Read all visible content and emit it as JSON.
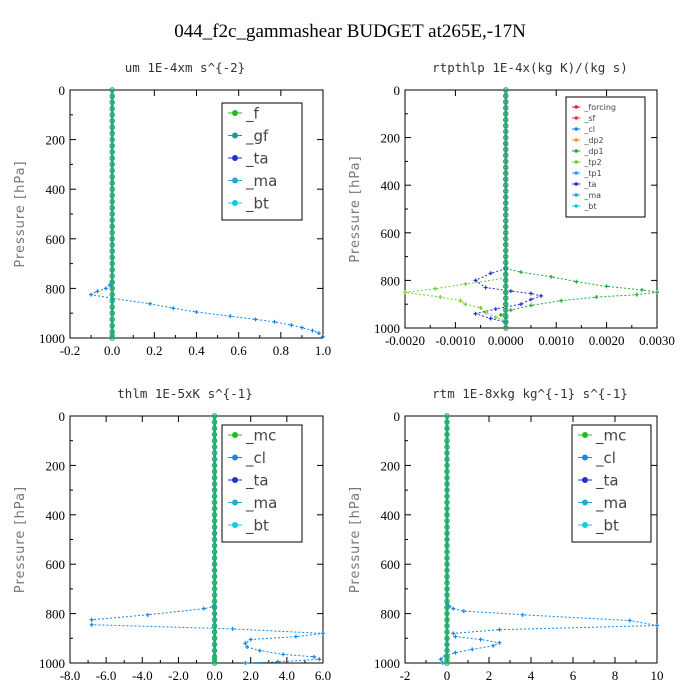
{
  "title": "044_f2c_gammashear  BUDGET at265E,-17N",
  "chart_data": [
    {
      "type": "line",
      "title": "um  1E-4xm s^{-2}",
      "ylabel": "Pressure [hPa]",
      "xlim": [
        -0.2,
        1.0
      ],
      "ylim": [
        1000,
        0
      ],
      "xticks": [
        "-0.2",
        "0.0",
        "0.2",
        "0.4",
        "0.6",
        "0.8",
        "1.0"
      ],
      "yticks": [
        "0",
        "200",
        "400",
        "600",
        "800",
        "1000"
      ],
      "legend": [
        "_f",
        "_gf",
        "_ta",
        "_ma",
        "_bt"
      ],
      "series": [
        {
          "name": "_f",
          "color": "#22bb22",
          "x": [
            0,
            0,
            0,
            0,
            0,
            0,
            0,
            0,
            0,
            0,
            0,
            0,
            0,
            0,
            0,
            0,
            0,
            0,
            0,
            0,
            0,
            0,
            0,
            0,
            0,
            0,
            0,
            0,
            0,
            0,
            0,
            0,
            0,
            0,
            0,
            0,
            0,
            0,
            0,
            0,
            0,
            0
          ],
          "y": [
            0,
            25,
            50,
            75,
            100,
            125,
            150,
            175,
            200,
            225,
            250,
            275,
            300,
            325,
            350,
            375,
            400,
            425,
            450,
            475,
            500,
            525,
            550,
            575,
            600,
            625,
            650,
            675,
            700,
            725,
            750,
            775,
            800,
            825,
            850,
            875,
            900,
            925,
            950,
            975,
            990,
            1000
          ]
        },
        {
          "name": "_ta",
          "color": "#1188ee",
          "x": [
            0,
            -0.01,
            -0.03,
            -0.07,
            -0.1,
            0.0,
            0.18,
            0.29,
            0.4,
            0.56,
            0.68,
            0.77,
            0.85,
            0.9,
            0.95,
            0.98,
            1.0
          ],
          "y": [
            775,
            785,
            800,
            812,
            825,
            840,
            862,
            880,
            895,
            912,
            925,
            935,
            948,
            958,
            970,
            980,
            995
          ]
        },
        {
          "name": "_bt",
          "color": "#22aa77",
          "x": [
            0,
            0,
            0,
            0,
            0,
            0,
            0,
            0,
            0,
            0,
            0,
            0,
            0,
            0,
            0,
            0,
            0,
            0,
            0,
            0,
            0,
            0,
            0,
            0,
            0,
            0,
            0,
            0,
            0,
            0,
            0,
            0,
            0,
            0,
            0,
            0,
            0,
            0,
            0,
            0,
            0
          ],
          "y": [
            0,
            25,
            50,
            75,
            100,
            125,
            150,
            175,
            200,
            225,
            250,
            275,
            300,
            325,
            350,
            375,
            400,
            425,
            450,
            475,
            500,
            525,
            550,
            575,
            600,
            625,
            650,
            675,
            700,
            725,
            750,
            775,
            800,
            825,
            850,
            875,
            900,
            925,
            950,
            975,
            1000
          ]
        }
      ]
    },
    {
      "type": "line",
      "title": "rtpthlp  1E-4x(kg K)/(kg s)",
      "ylabel": "Pressure [hPa]",
      "xlim": [
        -0.002,
        0.003
      ],
      "ylim": [
        1000,
        0
      ],
      "xticks": [
        "-0.0020",
        "-0.0010",
        "0.0000",
        "0.0010",
        "0.0020",
        "0.0030"
      ],
      "yticks": [
        "0",
        "200",
        "400",
        "600",
        "800",
        "1000"
      ],
      "legend": [
        "_forcing",
        "_sf",
        "_cl",
        "_dp2",
        "_dp1",
        "_tp2",
        "_tp1",
        "_ta",
        "_ma",
        "_bt"
      ],
      "series": [
        {
          "name": "_forcing",
          "color": "#dd2222",
          "x": [
            0,
            0,
            0,
            0,
            0,
            0,
            0,
            0,
            0,
            0,
            0,
            0,
            0,
            0,
            0,
            0,
            0,
            0,
            0,
            0,
            0,
            0,
            0,
            0,
            0,
            0,
            0,
            0,
            0,
            0,
            0,
            0,
            0,
            0,
            0,
            0,
            0,
            0,
            0,
            0,
            0
          ],
          "y": [
            0,
            25,
            50,
            75,
            100,
            125,
            150,
            175,
            200,
            225,
            250,
            275,
            300,
            325,
            350,
            375,
            400,
            425,
            450,
            475,
            500,
            525,
            550,
            575,
            600,
            625,
            650,
            675,
            700,
            725,
            750,
            775,
            800,
            825,
            850,
            875,
            900,
            925,
            950,
            975,
            1000
          ]
        },
        {
          "name": "_dp1",
          "color": "#22aa33",
          "x": [
            0,
            0.0003,
            0.0009,
            0.0014,
            0.002,
            0.0027,
            0.003,
            0.0026,
            0.0018,
            0.0011,
            0.0005,
            0.0001,
            -0.0001,
            0
          ],
          "y": [
            750,
            765,
            785,
            805,
            825,
            840,
            850,
            860,
            870,
            885,
            905,
            925,
            945,
            960
          ]
        },
        {
          "name": "_tp2",
          "color": "#77cc33",
          "x": [
            0,
            -0.0008,
            -0.0014,
            -0.002,
            -0.0013,
            -0.0009,
            -0.0008,
            -0.0005,
            -0.0004,
            -0.0002,
            0
          ],
          "y": [
            790,
            815,
            835,
            850,
            870,
            885,
            900,
            915,
            935,
            955,
            970
          ]
        },
        {
          "name": "_ta",
          "color": "#2233cc",
          "x": [
            0,
            -0.0003,
            -0.0006,
            -0.0004,
            0.0001,
            0.0005,
            0.0007,
            0.0005,
            0.0003,
            -0.0002,
            -0.0006,
            -0.0003,
            0
          ],
          "y": [
            750,
            770,
            800,
            830,
            845,
            855,
            865,
            880,
            900,
            920,
            940,
            960,
            975
          ]
        },
        {
          "name": "_bt",
          "color": "#22aa77",
          "x": [
            0,
            0,
            0,
            0,
            0,
            0,
            0,
            0,
            0,
            0,
            0,
            0,
            0,
            0,
            0,
            0,
            0,
            0,
            0,
            0,
            0,
            0,
            0,
            0,
            0,
            0,
            0,
            0,
            0,
            0,
            0,
            0,
            0,
            0,
            0,
            0,
            0,
            0,
            0,
            0,
            0
          ],
          "y": [
            0,
            25,
            50,
            75,
            100,
            125,
            150,
            175,
            200,
            225,
            250,
            275,
            300,
            325,
            350,
            375,
            400,
            425,
            450,
            475,
            500,
            525,
            550,
            575,
            600,
            625,
            650,
            675,
            700,
            725,
            750,
            775,
            800,
            825,
            850,
            875,
            900,
            925,
            950,
            975,
            1000
          ]
        }
      ]
    },
    {
      "type": "line",
      "title": "thlm  1E-5xK s^{-1}",
      "ylabel": "Pressure [hPa]",
      "xlim": [
        -8.0,
        6.0
      ],
      "ylim": [
        1000,
        0
      ],
      "xticks": [
        "-8.0",
        "-6.0",
        "-4.0",
        "-2.0",
        "0.0",
        "2.0",
        "4.0",
        "6.0"
      ],
      "yticks": [
        "0",
        "200",
        "400",
        "600",
        "800",
        "1000"
      ],
      "legend": [
        "_mc",
        "_cl",
        "_ta",
        "_ma",
        "_bt"
      ],
      "series": [
        {
          "name": "_mc",
          "color": "#22bb22",
          "x": [
            0,
            0,
            0,
            0,
            0,
            0,
            0,
            0,
            0,
            0,
            0,
            0,
            0,
            0,
            0,
            0,
            0,
            0,
            0,
            0,
            0,
            0,
            0,
            0,
            0,
            0,
            0,
            0,
            0,
            0,
            0,
            0,
            0,
            0,
            0,
            0,
            0,
            0,
            0,
            0,
            0,
            0
          ],
          "y": [
            0,
            25,
            50,
            75,
            100,
            125,
            150,
            175,
            200,
            225,
            250,
            275,
            300,
            325,
            350,
            375,
            400,
            425,
            450,
            475,
            500,
            525,
            550,
            575,
            600,
            625,
            650,
            675,
            700,
            725,
            750,
            775,
            800,
            825,
            850,
            875,
            900,
            925,
            950,
            975,
            990,
            1000
          ]
        },
        {
          "name": "_ta",
          "color": "#1188ee",
          "x": [
            0,
            -0.1,
            -0.6,
            -3.7,
            -6.8,
            -6.8,
            1.0,
            6.0,
            4.5,
            2.0,
            1.7,
            1.8,
            2.5,
            3.8,
            5.5,
            5.8,
            3.5,
            1.7
          ],
          "y": [
            765,
            772,
            780,
            805,
            825,
            845,
            862,
            880,
            893,
            905,
            920,
            935,
            950,
            965,
            975,
            985,
            995,
            1000
          ]
        },
        {
          "name": "_bt",
          "color": "#22aa77",
          "x": [
            0,
            0,
            0,
            0,
            0,
            0,
            0,
            0,
            0,
            0,
            0,
            0,
            0,
            0,
            0,
            0,
            0,
            0,
            0,
            0,
            0,
            0,
            0,
            0,
            0,
            0,
            0,
            0,
            0,
            0,
            0,
            0,
            0,
            0,
            0,
            0,
            0,
            0,
            0,
            0,
            0
          ],
          "y": [
            0,
            25,
            50,
            75,
            100,
            125,
            150,
            175,
            200,
            225,
            250,
            275,
            300,
            325,
            350,
            375,
            400,
            425,
            450,
            475,
            500,
            525,
            550,
            575,
            600,
            625,
            650,
            675,
            700,
            725,
            750,
            775,
            800,
            825,
            850,
            875,
            900,
            925,
            950,
            975,
            1000
          ]
        }
      ]
    },
    {
      "type": "line",
      "title": "rtm  1E-8xkg kg^{-1} s^{-1}",
      "ylabel": "Pressure [hPa]",
      "xlim": [
        -2,
        10
      ],
      "ylim": [
        1000,
        0
      ],
      "xticks": [
        "-2",
        "0",
        "2",
        "4",
        "6",
        "8",
        "10"
      ],
      "yticks": [
        "0",
        "200",
        "400",
        "600",
        "800",
        "1000"
      ],
      "legend": [
        "_mc",
        "_cl",
        "_ta",
        "_ma",
        "_bt"
      ],
      "series": [
        {
          "name": "_mc",
          "color": "#22bb22",
          "x": [
            0,
            0,
            0,
            0,
            0,
            0,
            0,
            0,
            0,
            0,
            0,
            0,
            0,
            0,
            0,
            0,
            0,
            0,
            0,
            0,
            0,
            0,
            0,
            0,
            0,
            0,
            0,
            0,
            0,
            0,
            0,
            0,
            0,
            0,
            0,
            0,
            0,
            0,
            0,
            0,
            0,
            0
          ],
          "y": [
            0,
            25,
            50,
            75,
            100,
            125,
            150,
            175,
            200,
            225,
            250,
            275,
            300,
            325,
            350,
            375,
            400,
            425,
            450,
            475,
            500,
            525,
            550,
            575,
            600,
            625,
            650,
            675,
            700,
            725,
            750,
            775,
            800,
            825,
            850,
            875,
            900,
            925,
            950,
            975,
            990,
            1000
          ]
        },
        {
          "name": "_ta",
          "color": "#1188ee",
          "x": [
            0,
            0.1,
            0.3,
            0.8,
            3.6,
            8.7,
            10.0,
            2.5,
            0.3,
            0.4,
            1.6,
            2.5,
            2.2,
            1.2,
            0.4,
            -0.1,
            -0.3,
            -0.2
          ],
          "y": [
            760,
            770,
            780,
            790,
            805,
            828,
            848,
            865,
            880,
            893,
            905,
            918,
            930,
            945,
            958,
            972,
            985,
            1000
          ]
        },
        {
          "name": "_bt",
          "color": "#22aa77",
          "x": [
            0,
            0,
            0,
            0,
            0,
            0,
            0,
            0,
            0,
            0,
            0,
            0,
            0,
            0,
            0,
            0,
            0,
            0,
            0,
            0,
            0,
            0,
            0,
            0,
            0,
            0,
            0,
            0,
            0,
            0,
            0,
            0,
            0,
            0,
            0,
            0,
            0,
            0,
            0,
            0,
            0
          ],
          "y": [
            0,
            25,
            50,
            75,
            100,
            125,
            150,
            175,
            200,
            225,
            250,
            275,
            300,
            325,
            350,
            375,
            400,
            425,
            450,
            475,
            500,
            525,
            550,
            575,
            600,
            625,
            650,
            675,
            700,
            725,
            750,
            775,
            800,
            825,
            850,
            875,
            900,
            925,
            950,
            975,
            1000
          ]
        }
      ]
    }
  ],
  "legend_colors": {
    "_f": "#22bb22",
    "_gf": "#229988",
    "_ta": "#2233cc",
    "_ma": "#22aacc",
    "_bt": "#11ccdd",
    "_mc": "#22bb22",
    "_cl": "#1188ee",
    "_forcing": "#dd2222",
    "_sf": "#ee3333",
    "_dp2": "#ee9922",
    "_dp1": "#22aa33",
    "_tp2": "#77cc33",
    "_tp1": "#3399ee"
  }
}
